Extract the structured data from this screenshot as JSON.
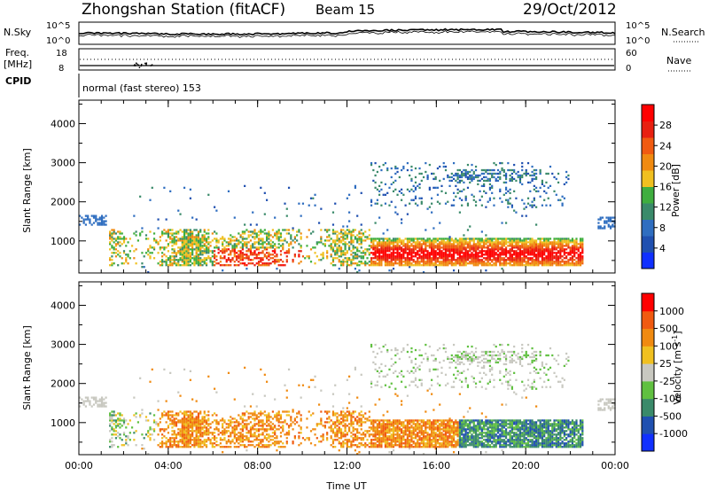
{
  "header": {
    "title": "Zhongshan Station (fitACF)",
    "beam": "Beam 15",
    "date": "29/Oct/2012"
  },
  "aux_panels": {
    "nsky_label": "N.Sky",
    "nsky_ticks": [
      "10^5",
      "10^0"
    ],
    "nsearch_label": "N.Search",
    "nsearch_ticks": [
      "10^5",
      "10^0"
    ],
    "freq_label_line1": "Freq.",
    "freq_label_line2": "[MHz]",
    "freq_ticks": [
      "18",
      "8"
    ],
    "nave_label": "Nave",
    "nave_ticks": [
      "60",
      "0"
    ],
    "cpid_label": "CPID",
    "cpid_text": "normal (fast stereo) 153"
  },
  "colors": {
    "power_scale": [
      "#1030ff",
      "#2050b0",
      "#2f6ec0",
      "#3a8a6a",
      "#3fae3f",
      "#f0c020",
      "#f08a10",
      "#f05a10",
      "#e82010",
      "#ff0000"
    ],
    "velocity_scale": [
      "#ff0000",
      "#f05a10",
      "#f08a10",
      "#f0c020",
      "#c8c8c0",
      "#60c040",
      "#3a8a6a",
      "#2050b0",
      "#1030ff"
    ]
  },
  "chart_data": [
    {
      "type": "heatmap",
      "name": "power",
      "ylabel": "Slant Range [km]",
      "yticks": [
        "4000",
        "3000",
        "2000",
        "1000"
      ],
      "ylim": [
        180,
        4600
      ],
      "colorbar_label": "Power [dB]",
      "colorbar_ticks": [
        "28",
        "24",
        "20",
        "16",
        "12",
        "8",
        "4"
      ],
      "color_range": [
        0,
        32
      ],
      "xticks": [
        "00:00",
        "04:00",
        "08:00",
        "12:00",
        "16:00",
        "20:00",
        "00:00"
      ],
      "xlim_hours": [
        0,
        24
      ]
    },
    {
      "type": "heatmap",
      "name": "velocity",
      "ylabel": "Slant Range [km]",
      "yticks": [
        "4000",
        "3000",
        "2000",
        "1000"
      ],
      "ylim": [
        180,
        4600
      ],
      "colorbar_label": "Velocity [m s",
      "colorbar_label_sup": "-1",
      "colorbar_label_end": "]",
      "colorbar_ticks": [
        "1000",
        "500",
        "100",
        "25",
        "-25",
        "-100",
        "-500",
        "-1000"
      ],
      "xticks": [
        "00:00",
        "04:00",
        "08:00",
        "12:00",
        "16:00",
        "20:00",
        "00:00"
      ],
      "xlabel": "Time UT",
      "xlim_hours": [
        0,
        24
      ]
    }
  ]
}
